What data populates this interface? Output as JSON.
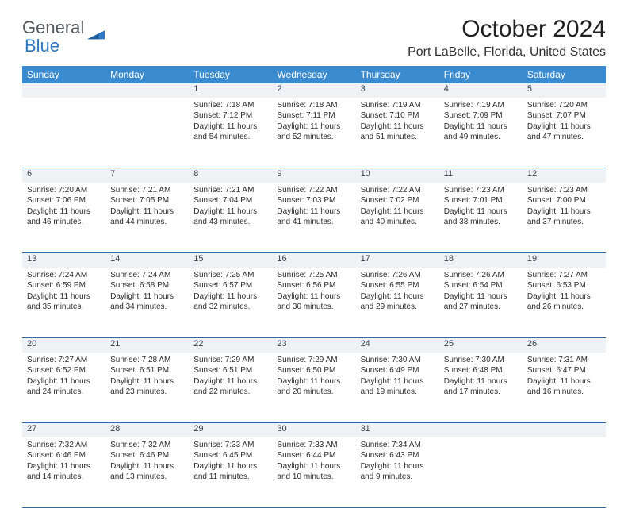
{
  "brand": {
    "general": "General",
    "blue": "Blue"
  },
  "title": "October 2024",
  "location": "Port LaBelle, Florida, United States",
  "colors": {
    "header_bg": "#3a8bd0",
    "header_text": "#ffffff",
    "daynum_bg": "#eef2f4",
    "rule": "#2f6aa8",
    "brand_blue": "#2f78c2",
    "brand_gray": "#555a5f"
  },
  "weekdays": [
    "Sunday",
    "Monday",
    "Tuesday",
    "Wednesday",
    "Thursday",
    "Friday",
    "Saturday"
  ],
  "weeks": [
    [
      null,
      null,
      {
        "n": "1",
        "sr": "Sunrise: 7:18 AM",
        "ss": "Sunset: 7:12 PM",
        "d1": "Daylight: 11 hours",
        "d2": "and 54 minutes."
      },
      {
        "n": "2",
        "sr": "Sunrise: 7:18 AM",
        "ss": "Sunset: 7:11 PM",
        "d1": "Daylight: 11 hours",
        "d2": "and 52 minutes."
      },
      {
        "n": "3",
        "sr": "Sunrise: 7:19 AM",
        "ss": "Sunset: 7:10 PM",
        "d1": "Daylight: 11 hours",
        "d2": "and 51 minutes."
      },
      {
        "n": "4",
        "sr": "Sunrise: 7:19 AM",
        "ss": "Sunset: 7:09 PM",
        "d1": "Daylight: 11 hours",
        "d2": "and 49 minutes."
      },
      {
        "n": "5",
        "sr": "Sunrise: 7:20 AM",
        "ss": "Sunset: 7:07 PM",
        "d1": "Daylight: 11 hours",
        "d2": "and 47 minutes."
      }
    ],
    [
      {
        "n": "6",
        "sr": "Sunrise: 7:20 AM",
        "ss": "Sunset: 7:06 PM",
        "d1": "Daylight: 11 hours",
        "d2": "and 46 minutes."
      },
      {
        "n": "7",
        "sr": "Sunrise: 7:21 AM",
        "ss": "Sunset: 7:05 PM",
        "d1": "Daylight: 11 hours",
        "d2": "and 44 minutes."
      },
      {
        "n": "8",
        "sr": "Sunrise: 7:21 AM",
        "ss": "Sunset: 7:04 PM",
        "d1": "Daylight: 11 hours",
        "d2": "and 43 minutes."
      },
      {
        "n": "9",
        "sr": "Sunrise: 7:22 AM",
        "ss": "Sunset: 7:03 PM",
        "d1": "Daylight: 11 hours",
        "d2": "and 41 minutes."
      },
      {
        "n": "10",
        "sr": "Sunrise: 7:22 AM",
        "ss": "Sunset: 7:02 PM",
        "d1": "Daylight: 11 hours",
        "d2": "and 40 minutes."
      },
      {
        "n": "11",
        "sr": "Sunrise: 7:23 AM",
        "ss": "Sunset: 7:01 PM",
        "d1": "Daylight: 11 hours",
        "d2": "and 38 minutes."
      },
      {
        "n": "12",
        "sr": "Sunrise: 7:23 AM",
        "ss": "Sunset: 7:00 PM",
        "d1": "Daylight: 11 hours",
        "d2": "and 37 minutes."
      }
    ],
    [
      {
        "n": "13",
        "sr": "Sunrise: 7:24 AM",
        "ss": "Sunset: 6:59 PM",
        "d1": "Daylight: 11 hours",
        "d2": "and 35 minutes."
      },
      {
        "n": "14",
        "sr": "Sunrise: 7:24 AM",
        "ss": "Sunset: 6:58 PM",
        "d1": "Daylight: 11 hours",
        "d2": "and 34 minutes."
      },
      {
        "n": "15",
        "sr": "Sunrise: 7:25 AM",
        "ss": "Sunset: 6:57 PM",
        "d1": "Daylight: 11 hours",
        "d2": "and 32 minutes."
      },
      {
        "n": "16",
        "sr": "Sunrise: 7:25 AM",
        "ss": "Sunset: 6:56 PM",
        "d1": "Daylight: 11 hours",
        "d2": "and 30 minutes."
      },
      {
        "n": "17",
        "sr": "Sunrise: 7:26 AM",
        "ss": "Sunset: 6:55 PM",
        "d1": "Daylight: 11 hours",
        "d2": "and 29 minutes."
      },
      {
        "n": "18",
        "sr": "Sunrise: 7:26 AM",
        "ss": "Sunset: 6:54 PM",
        "d1": "Daylight: 11 hours",
        "d2": "and 27 minutes."
      },
      {
        "n": "19",
        "sr": "Sunrise: 7:27 AM",
        "ss": "Sunset: 6:53 PM",
        "d1": "Daylight: 11 hours",
        "d2": "and 26 minutes."
      }
    ],
    [
      {
        "n": "20",
        "sr": "Sunrise: 7:27 AM",
        "ss": "Sunset: 6:52 PM",
        "d1": "Daylight: 11 hours",
        "d2": "and 24 minutes."
      },
      {
        "n": "21",
        "sr": "Sunrise: 7:28 AM",
        "ss": "Sunset: 6:51 PM",
        "d1": "Daylight: 11 hours",
        "d2": "and 23 minutes."
      },
      {
        "n": "22",
        "sr": "Sunrise: 7:29 AM",
        "ss": "Sunset: 6:51 PM",
        "d1": "Daylight: 11 hours",
        "d2": "and 22 minutes."
      },
      {
        "n": "23",
        "sr": "Sunrise: 7:29 AM",
        "ss": "Sunset: 6:50 PM",
        "d1": "Daylight: 11 hours",
        "d2": "and 20 minutes."
      },
      {
        "n": "24",
        "sr": "Sunrise: 7:30 AM",
        "ss": "Sunset: 6:49 PM",
        "d1": "Daylight: 11 hours",
        "d2": "and 19 minutes."
      },
      {
        "n": "25",
        "sr": "Sunrise: 7:30 AM",
        "ss": "Sunset: 6:48 PM",
        "d1": "Daylight: 11 hours",
        "d2": "and 17 minutes."
      },
      {
        "n": "26",
        "sr": "Sunrise: 7:31 AM",
        "ss": "Sunset: 6:47 PM",
        "d1": "Daylight: 11 hours",
        "d2": "and 16 minutes."
      }
    ],
    [
      {
        "n": "27",
        "sr": "Sunrise: 7:32 AM",
        "ss": "Sunset: 6:46 PM",
        "d1": "Daylight: 11 hours",
        "d2": "and 14 minutes."
      },
      {
        "n": "28",
        "sr": "Sunrise: 7:32 AM",
        "ss": "Sunset: 6:46 PM",
        "d1": "Daylight: 11 hours",
        "d2": "and 13 minutes."
      },
      {
        "n": "29",
        "sr": "Sunrise: 7:33 AM",
        "ss": "Sunset: 6:45 PM",
        "d1": "Daylight: 11 hours",
        "d2": "and 11 minutes."
      },
      {
        "n": "30",
        "sr": "Sunrise: 7:33 AM",
        "ss": "Sunset: 6:44 PM",
        "d1": "Daylight: 11 hours",
        "d2": "and 10 minutes."
      },
      {
        "n": "31",
        "sr": "Sunrise: 7:34 AM",
        "ss": "Sunset: 6:43 PM",
        "d1": "Daylight: 11 hours",
        "d2": "and 9 minutes."
      },
      null,
      null
    ]
  ]
}
